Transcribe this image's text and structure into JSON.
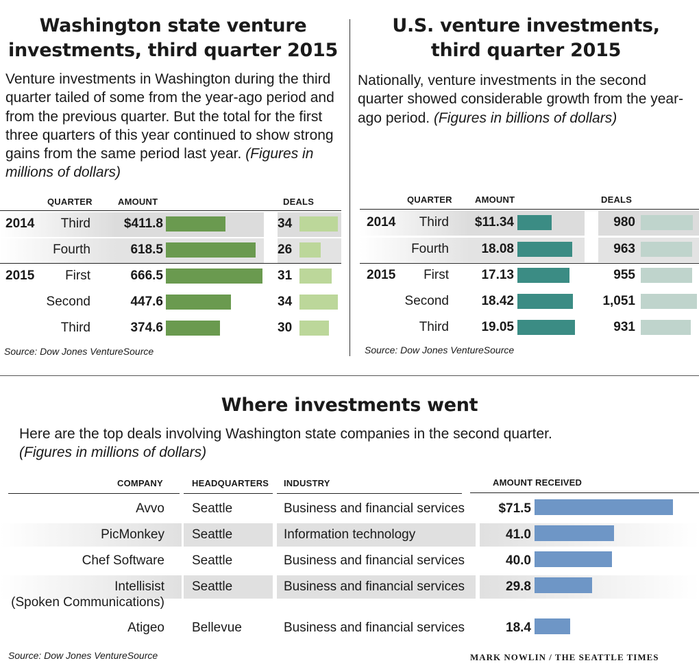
{
  "wa": {
    "title": "Washington state venture\ninvestments, third quarter 2015",
    "desc": "Venture investments in Washington during the third quarter tailed of some from the year-ago period and from the previous quarter. But the total for the first three quarters of this year continued to show strong gains from the same period last year.",
    "desc_note": "(Figures in millions of dollars)",
    "headers": {
      "quarter": "QUARTER",
      "amount": "AMOUNT",
      "deals": "DEALS"
    },
    "source": "Source: Dow Jones VentureSource"
  },
  "us": {
    "title": "U.S. venture investments,\nthird quarter 2015",
    "desc": "Nationally, venture investments in the second quarter showed considerable growth from the year-ago period.",
    "desc_note": "(Figures in billions of dollars)",
    "headers": {
      "quarter": "QUARTER",
      "amount": "AMOUNT",
      "deals": "DEALS"
    },
    "source": "Source: Dow Jones VentureSource"
  },
  "deals": {
    "title": "Where investments went",
    "desc": "Here are the top deals involving Washington state companies in the second quarter.",
    "desc_note": "(Figures in millions of dollars)",
    "headers": {
      "company": "COMPANY",
      "hq": "HEADQUARTERS",
      "industry": "INDUSTRY",
      "amount": "AMOUNT RECEIVED"
    },
    "source": "Source: Dow Jones VentureSource",
    "credit": "MARK NOWLIN / THE SEATTLE TIMES"
  },
  "chart_data": [
    {
      "type": "bar",
      "title": "Washington state venture investments, third quarter 2015",
      "rows": [
        {
          "year": "2014",
          "quarter": "Third",
          "amount": 411.8,
          "amount_label": "$411.8",
          "deals": 34
        },
        {
          "year": "",
          "quarter": "Fourth",
          "amount": 618.5,
          "amount_label": "618.5",
          "deals": 26
        },
        {
          "year": "2015",
          "quarter": "First",
          "amount": 666.5,
          "amount_label": "666.5",
          "deals": 31
        },
        {
          "year": "",
          "quarter": "Second",
          "amount": 447.6,
          "amount_label": "447.6",
          "deals": 34
        },
        {
          "year": "",
          "quarter": "Third",
          "amount": 374.6,
          "amount_label": "374.6",
          "deals": 30
        }
      ],
      "amount_bar_color": "#6a9a4f",
      "deals_bar_color": "#bcd79a"
    },
    {
      "type": "bar",
      "title": "U.S. venture investments, third quarter 2015",
      "rows": [
        {
          "year": "2014",
          "quarter": "Third",
          "amount": 11.34,
          "amount_label": "$11.34",
          "deals": 980,
          "deals_label": "980"
        },
        {
          "year": "",
          "quarter": "Fourth",
          "amount": 18.08,
          "amount_label": "18.08",
          "deals": 963,
          "deals_label": "963"
        },
        {
          "year": "2015",
          "quarter": "First",
          "amount": 17.13,
          "amount_label": "17.13",
          "deals": 955,
          "deals_label": "955"
        },
        {
          "year": "",
          "quarter": "Second",
          "amount": 18.42,
          "amount_label": "18.42",
          "deals": 1051,
          "deals_label": "1,051"
        },
        {
          "year": "",
          "quarter": "Third",
          "amount": 19.05,
          "amount_label": "19.05",
          "deals": 931,
          "deals_label": "931"
        }
      ],
      "amount_bar_color": "#3b8c84",
      "deals_bar_color": "#bfd4cc"
    },
    {
      "type": "bar",
      "title": "Where investments went",
      "rows": [
        {
          "company": "Avvo",
          "hq": "Seattle",
          "industry": "Business and financial services",
          "amount": 71.5,
          "amount_label": "$71.5"
        },
        {
          "company": "PicMonkey",
          "hq": "Seattle",
          "industry": "Information technology",
          "amount": 41.0,
          "amount_label": "41.0"
        },
        {
          "company": "Chef Software",
          "hq": "Seattle",
          "industry": "Business and financial services",
          "amount": 40.0,
          "amount_label": "40.0"
        },
        {
          "company": "Intellisist",
          "company_sub": "(Spoken Communications)",
          "hq": "Seattle",
          "industry": "Business and financial services",
          "amount": 29.8,
          "amount_label": "29.8"
        },
        {
          "company": "Atigeo",
          "hq": "Bellevue",
          "industry": "Business and financial services",
          "amount": 18.4,
          "amount_label": "18.4"
        }
      ],
      "amount_bar_color": "#6e96c6"
    }
  ]
}
